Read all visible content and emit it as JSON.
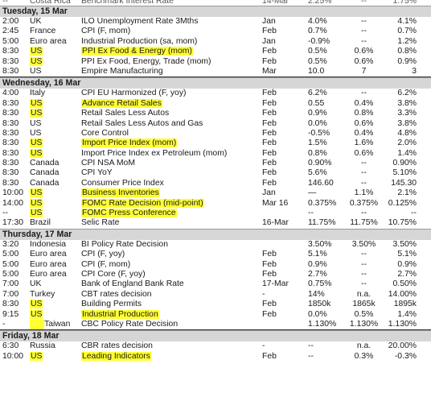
{
  "top_partial_row": {
    "time": "--",
    "country": "Costa Rica",
    "event": "Benchmark Interest Rate",
    "period": "14-Mar",
    "actual": "2.25%",
    "forecast": "--",
    "prior": "1.75%"
  },
  "days": [
    {
      "header": "Tuesday, 15 Mar",
      "rows": [
        {
          "time": "2:00",
          "country": "UK",
          "event": "ILO Unemployment Rate 3Mths",
          "period": "Jan",
          "actual": "4.0%",
          "forecast": "--",
          "prior": "4.1%"
        },
        {
          "time": "2:45",
          "country": "France",
          "event": "CPI (F, mom)",
          "period": "Feb",
          "actual": "0.7%",
          "forecast": "--",
          "prior": "0.7%"
        },
        {
          "time": "5:00",
          "country": "Euro area",
          "event": "Industrial Production (sa, mom)",
          "period": "Jan",
          "actual": "-0.9%",
          "forecast": "--",
          "prior": "1.2%"
        },
        {
          "time": "8:30",
          "country": "US",
          "event": "PPI Ex Food & Energy (mom)",
          "period": "Feb",
          "actual": "0.5%",
          "forecast": "0.6%",
          "prior": "0.8%",
          "hl_country": true,
          "hl_event": true
        },
        {
          "time": "8:30",
          "country": "US",
          "event": "PPI Ex Food, Energy, Trade (mom)",
          "period": "Feb",
          "actual": "0.5%",
          "forecast": "0.6%",
          "prior": "0.9%",
          "hl_country": true
        },
        {
          "time": "8:30",
          "country": "US",
          "event": "Empire Manufacturing",
          "period": "Mar",
          "actual": "10.0",
          "forecast": "7",
          "prior": "3",
          "underline": true
        }
      ]
    },
    {
      "header": "Wednesday, 16 Mar",
      "rows": [
        {
          "time": "4:00",
          "country": "Italy",
          "event": "CPI EU Harmonized (F, yoy)",
          "period": "Feb",
          "actual": "6.2%",
          "forecast": "--",
          "prior": "6.2%"
        },
        {
          "time": "8:30",
          "country": "US",
          "event": "Advance Retail Sales",
          "period": "Feb",
          "actual": "0.55",
          "forecast": "0.4%",
          "prior": "3.8%",
          "hl_country": true,
          "hl_event": true
        },
        {
          "time": "8:30",
          "country": "US",
          "event": "Retail Sales Less Autos",
          "period": "Feb",
          "actual": "0.9%",
          "forecast": "0.8%",
          "prior": "3.3%",
          "hl_country": true
        },
        {
          "time": "8:30",
          "country": "US",
          "event": "Retail Sales Less Autos and Gas",
          "period": "Feb",
          "actual": "0.0%",
          "forecast": "0.6%",
          "prior": "3.8%"
        },
        {
          "time": "8:30",
          "country": "US",
          "event": "Core Control",
          "period": "Feb",
          "actual": "-0.5%",
          "forecast": "0.4%",
          "prior": "4.8%"
        },
        {
          "time": "8:30",
          "country": "US",
          "event": "Import Price Index (mom)",
          "period": "Feb",
          "actual": "1.5%",
          "forecast": "1.6%",
          "prior": "2.0%",
          "hl_country": true,
          "hl_event": true
        },
        {
          "time": "8:30",
          "country": "US",
          "event": "Import Price Index ex Petroleum (mom)",
          "period": "Feb",
          "actual": "0.8%",
          "forecast": "0.6%",
          "prior": "1.4%",
          "hl_country": true
        },
        {
          "time": "8:30",
          "country": "Canada",
          "event": "CPI NSA MoM",
          "period": "Feb",
          "actual": "0.90%",
          "forecast": "--",
          "prior": "0.90%"
        },
        {
          "time": "8:30",
          "country": "Canada",
          "event": "CPI YoY",
          "period": "Feb",
          "actual": "5.6%",
          "forecast": "--",
          "prior": "5.10%"
        },
        {
          "time": "8:30",
          "country": "Canada",
          "event": "Consumer Price Index",
          "period": "Feb",
          "actual": "146.60",
          "forecast": "--",
          "prior": "145.30"
        },
        {
          "time": "10:00",
          "country": "US",
          "event": "Business Inventories",
          "period": "Jan",
          "actual": "—",
          "forecast": "1.1%",
          "prior": "2.1%",
          "hl_country": true,
          "hl_event": true
        },
        {
          "time": "14:00",
          "country": "US",
          "event": "FOMC Rate Decision (mid-point)",
          "period": "Mar 16",
          "actual": "0.375%",
          "forecast": "0.375%",
          "prior": "0.125%",
          "hl_country": true,
          "hl_event": true
        },
        {
          "time": "--",
          "country": "US",
          "event": "FOMC Press Conference",
          "period": "",
          "actual": "--",
          "forecast": "--",
          "prior": "--",
          "hl_country": true,
          "hl_event": true
        },
        {
          "time": "17:30",
          "country": "Brazil",
          "event": "Selic Rate",
          "period": "16-Mar",
          "actual": "11.75%",
          "forecast": "11.75%",
          "prior": "10.75%"
        }
      ]
    },
    {
      "header": "Thursday, 17 Mar",
      "rows": [
        {
          "time": "3:20",
          "country": "Indonesia",
          "event": "BI Policy Rate Decision",
          "period": "",
          "actual": "3.50%",
          "forecast": "3.50%",
          "prior": "3.50%"
        },
        {
          "time": "5:00",
          "country": "Euro area",
          "event": "CPI (F, yoy)",
          "period": "Feb",
          "actual": "5.1%",
          "forecast": "--",
          "prior": "5.1%"
        },
        {
          "time": "5:00",
          "country": "Euro area",
          "event": "CPI (F, mom)",
          "period": "Feb",
          "actual": "0.9%",
          "forecast": "--",
          "prior": "0.9%"
        },
        {
          "time": "5:00",
          "country": "Euro area",
          "event": "CPI Core (F, yoy)",
          "period": "Feb",
          "actual": "2.7%",
          "forecast": "--",
          "prior": "2.7%"
        },
        {
          "time": "7:00",
          "country": "UK",
          "event": "Bank of England Bank Rate",
          "period": "17-Mar",
          "actual": "0.75%",
          "forecast": "--",
          "prior": "0.50%"
        },
        {
          "time": "7:00",
          "country": "Turkey",
          "event": "CBT rates decision",
          "period": "-",
          "actual": "14%",
          "forecast": "n.a.",
          "prior": "14.00%"
        },
        {
          "time": "8:30",
          "country": "US",
          "event": "Building Permits",
          "period": "Feb",
          "actual": "1850k",
          "forecast": "1865k",
          "prior": "1895k",
          "hl_country": true
        },
        {
          "time": "9:15",
          "country": "US",
          "event": "Industrial Production",
          "period": "Feb",
          "actual": "0.0%",
          "forecast": "0.5%",
          "prior": "1.4%",
          "hl_country": true,
          "hl_event": true
        },
        {
          "time": "-",
          "country": "Taiwan",
          "event": "CBC Policy Rate Decision",
          "period": "",
          "actual": "1.130%",
          "forecast": "1.130%",
          "prior": "1.130%",
          "hl_country_block": true,
          "underline": true
        }
      ]
    },
    {
      "header": "Friday, 18 Mar",
      "rows": [
        {
          "time": "6:30",
          "country": "Russia",
          "event": "CBR rates decision",
          "period": "-",
          "actual": "--",
          "forecast": "n.a.",
          "prior": "20.00%"
        },
        {
          "time": "10:00",
          "country": "US",
          "event": "Leading Indicators",
          "period": "Feb",
          "actual": "--",
          "forecast": "0.3%",
          "prior": "-0.3%",
          "hl_country": true,
          "hl_event": true
        }
      ]
    }
  ]
}
